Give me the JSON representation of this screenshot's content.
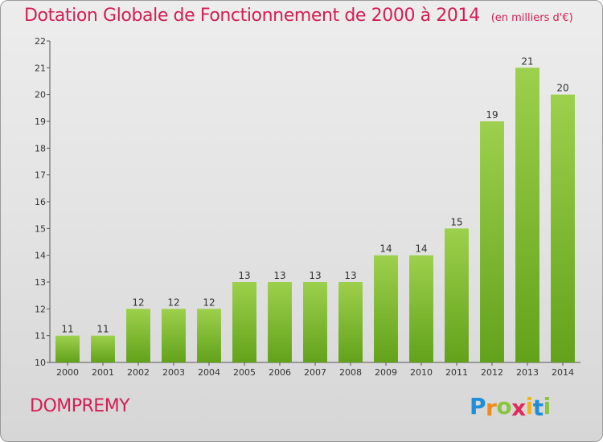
{
  "chart_data": {
    "type": "bar",
    "title": "Dotation Globale de Fonctionnement de 2000 à 2014",
    "unit": "(en milliers d'€)",
    "categories": [
      "2000",
      "2001",
      "2002",
      "2003",
      "2004",
      "2005",
      "2006",
      "2007",
      "2008",
      "2009",
      "2010",
      "2011",
      "2012",
      "2013",
      "2014"
    ],
    "values": [
      11,
      11,
      12,
      12,
      12,
      13,
      13,
      13,
      13,
      14,
      14,
      15,
      19,
      21,
      20
    ],
    "ylim": [
      10,
      22
    ],
    "yticks": [
      10,
      11,
      12,
      13,
      14,
      15,
      16,
      17,
      18,
      19,
      20,
      21,
      22
    ],
    "grid": false,
    "bar_color_light": "#9dd04c",
    "bar_color_dark": "#62a21a"
  },
  "commune": "DOMPREMY",
  "logo": {
    "letters": [
      "P",
      "r",
      "o",
      "x",
      "i",
      "t",
      "i"
    ],
    "colors": [
      "#1e8fd6",
      "#f28a1b",
      "#8cc43f",
      "#e02a5a",
      "#f2b41b",
      "#1e8fd6",
      "#8cc43f"
    ]
  },
  "colors": {
    "title": "#d21f55",
    "axis": "#555555"
  }
}
